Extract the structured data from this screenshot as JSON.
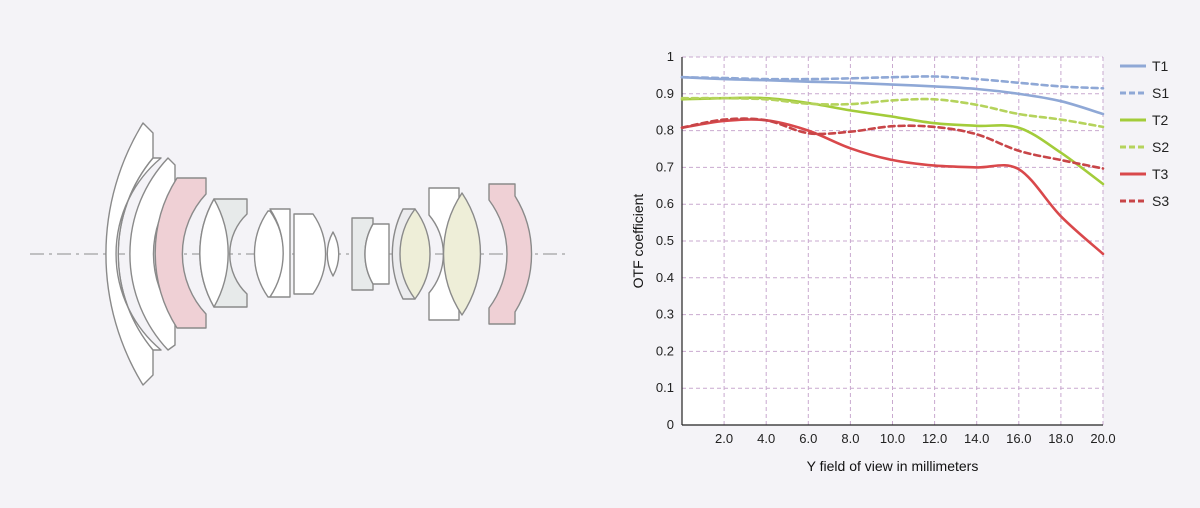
{
  "lens_diagram": {
    "optical_axis_color": "#8c8c8c",
    "element_stroke": "#8a8a8a",
    "fills": {
      "plain": "#ffffff",
      "pink": "#efd0d5",
      "gray": "#e7eaea",
      "light_gray": "#ececee",
      "yellow": "#eeeed8"
    }
  },
  "chart_data": {
    "type": "line",
    "xlabel": "Y field of view in millimeters",
    "ylabel": "OTF coefficient",
    "xlim": [
      0,
      20
    ],
    "ylim": [
      0,
      1
    ],
    "x_ticks": [
      2,
      4,
      6,
      8,
      10,
      12,
      14,
      16,
      18,
      20
    ],
    "x_tick_labels": [
      "2.0",
      "4.0",
      "6.0",
      "8.0",
      "10.0",
      "12.0",
      "14.0",
      "16.0",
      "18.0",
      "20.0"
    ],
    "y_ticks": [
      0,
      0.1,
      0.2,
      0.3,
      0.4,
      0.5,
      0.6,
      0.7,
      0.8,
      0.9,
      1
    ],
    "y_tick_labels": [
      "0",
      "0.1",
      "0.2",
      "0.3",
      "0.4",
      "0.5",
      "0.6",
      "0.7",
      "0.8",
      "0.9",
      "1"
    ],
    "grid": true,
    "legend_position": "right",
    "x": [
      0,
      2,
      4,
      6,
      8,
      10,
      12,
      14,
      16,
      18,
      20
    ],
    "series": [
      {
        "name": "T1",
        "style": "solid",
        "color": "#8fa8d6",
        "values": [
          0.945,
          0.94,
          0.937,
          0.933,
          0.93,
          0.925,
          0.92,
          0.913,
          0.9,
          0.88,
          0.845
        ]
      },
      {
        "name": "S1",
        "style": "dashed",
        "color": "#8fa8d6",
        "values": [
          0.945,
          0.943,
          0.94,
          0.94,
          0.942,
          0.945,
          0.947,
          0.94,
          0.93,
          0.92,
          0.915
        ]
      },
      {
        "name": "T2",
        "style": "solid",
        "color": "#a3cc3a",
        "values": [
          0.885,
          0.888,
          0.888,
          0.875,
          0.855,
          0.838,
          0.82,
          0.813,
          0.808,
          0.74,
          0.655
        ]
      },
      {
        "name": "S2",
        "style": "dashed",
        "color": "#b5d35c",
        "values": [
          0.888,
          0.888,
          0.885,
          0.873,
          0.872,
          0.882,
          0.885,
          0.87,
          0.845,
          0.83,
          0.81
        ]
      },
      {
        "name": "T3",
        "style": "solid",
        "color": "#d9484b",
        "values": [
          0.808,
          0.826,
          0.828,
          0.8,
          0.752,
          0.72,
          0.705,
          0.7,
          0.695,
          0.567,
          0.465
        ]
      },
      {
        "name": "S3",
        "style": "dashed",
        "color": "#c84548",
        "values": [
          0.808,
          0.83,
          0.828,
          0.793,
          0.797,
          0.812,
          0.81,
          0.79,
          0.745,
          0.72,
          0.697
        ]
      }
    ]
  }
}
